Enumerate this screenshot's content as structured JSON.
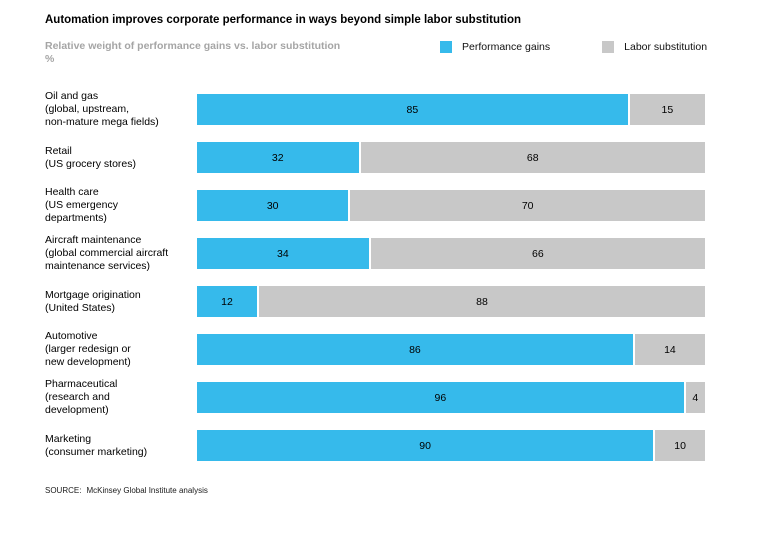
{
  "title": "Automation improves corporate performance in ways beyond simple labor substitution",
  "subtitle": "Relative weight of performance gains vs. labor substitution",
  "subtitle_unit": "%",
  "legend": [
    {
      "label": "Performance gains",
      "color": "#36baeb"
    },
    {
      "label": "Labor substitution",
      "color": "#c8c8c8"
    }
  ],
  "source": {
    "label": "SOURCE:",
    "text": "McKinsey Global Institute analysis"
  },
  "colors": {
    "performance_gains": "#36baeb",
    "labor_substitution": "#c8c8c8",
    "subtitle_gray": "#a5a5a5"
  },
  "chart_data": {
    "type": "bar",
    "orientation": "horizontal",
    "stacked": true,
    "unit": "%",
    "xlim": [
      0,
      100
    ],
    "grid": false,
    "legend_position": "top-right",
    "categories": [
      "Oil and gas (global, upstream, non-mature mega fields)",
      "Retail (US grocery stores)",
      "Health care (US emergency departments)",
      "Aircraft maintenance (global commercial aircraft maintenance services)",
      "Mortgage origination (United States)",
      "Automotive (larger redesign or new development)",
      "Pharmaceutical (research and development)",
      "Marketing (consumer marketing)"
    ],
    "series": [
      {
        "name": "Performance gains",
        "color": "#36baeb",
        "values": [
          85,
          32,
          30,
          34,
          12,
          86,
          96,
          90
        ]
      },
      {
        "name": "Labor substitution",
        "color": "#c8c8c8",
        "values": [
          15,
          68,
          70,
          66,
          88,
          14,
          4,
          10
        ]
      }
    ],
    "rows": [
      {
        "label_lines": [
          "Oil and gas",
          "(global, upstream,",
          "non-mature mega fields)"
        ],
        "performance": 85,
        "labor": 15
      },
      {
        "label_lines": [
          "Retail",
          "(US grocery stores)"
        ],
        "performance": 32,
        "labor": 68
      },
      {
        "label_lines": [
          "Health care",
          "(US emergency",
          "departments)"
        ],
        "performance": 30,
        "labor": 70
      },
      {
        "label_lines": [
          "Aircraft maintenance",
          "(global commercial aircraft",
          "maintenance services)"
        ],
        "performance": 34,
        "labor": 66
      },
      {
        "label_lines": [
          "Mortgage origination",
          "(United States)"
        ],
        "performance": 12,
        "labor": 88
      },
      {
        "label_lines": [
          "Automotive",
          "(larger redesign or",
          "new development)"
        ],
        "performance": 86,
        "labor": 14
      },
      {
        "label_lines": [
          "Pharmaceutical",
          "(research and",
          "development)"
        ],
        "performance": 96,
        "labor": 4
      },
      {
        "label_lines": [
          "Marketing",
          "(consumer marketing)"
        ],
        "performance": 90,
        "labor": 10
      }
    ]
  }
}
